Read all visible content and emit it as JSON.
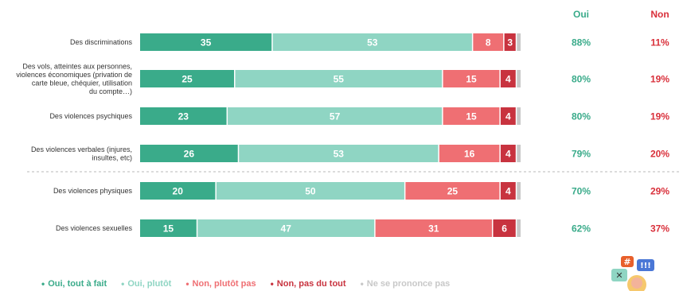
{
  "chart_data": {
    "type": "bar",
    "orientation": "horizontal",
    "stacked": true,
    "categories": [
      "Des discriminations",
      "Des vols, atteintes aux personnes, violences économiques (privation de carte bleue, chéquier, utilisation du compte…)",
      "Des violences psychiques",
      "Des violences verbales (injures, insultes, etc)",
      "Des violences physiques",
      "Des violences sexuelles"
    ],
    "series": [
      {
        "name": "Oui, tout à fait",
        "color": "#3aab8a",
        "values": [
          35,
          25,
          23,
          26,
          20,
          15
        ]
      },
      {
        "name": "Oui, plutôt",
        "color": "#8fd5c3",
        "values": [
          53,
          55,
          57,
          53,
          50,
          47
        ]
      },
      {
        "name": "Non, plutôt pas",
        "color": "#ef6f73",
        "values": [
          8,
          15,
          15,
          16,
          25,
          31
        ]
      },
      {
        "name": "Non, pas du tout",
        "color": "#c8333f",
        "values": [
          3,
          4,
          4,
          4,
          4,
          6
        ]
      },
      {
        "name": "Ne se prononce pas",
        "color": "#c8c8c8",
        "values": [
          1,
          1,
          1,
          1,
          1,
          1
        ]
      }
    ],
    "xlim": [
      0,
      100
    ],
    "totals": {
      "oui": {
        "label": "Oui",
        "color": "#3aab8a",
        "values": [
          "88%",
          "80%",
          "80%",
          "79%",
          "70%",
          "62%"
        ]
      },
      "non": {
        "label": "Non",
        "color": "#d9303b",
        "values": [
          "11%",
          "19%",
          "19%",
          "20%",
          "29%",
          "37%"
        ]
      }
    },
    "legend_position": "bottom",
    "grid": false
  },
  "icons": {
    "decoration": "chat-bubbles-illustration-icon"
  }
}
